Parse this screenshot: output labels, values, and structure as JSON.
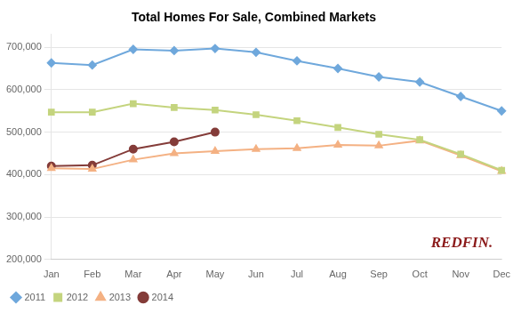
{
  "chart_data": {
    "type": "line",
    "title": "Total Homes For Sale, Combined Markets",
    "categories": [
      "Jan",
      "Feb",
      "Mar",
      "Apr",
      "May",
      "Jun",
      "Jul",
      "Aug",
      "Sep",
      "Oct",
      "Nov",
      "Dec"
    ],
    "series": [
      {
        "name": "2011",
        "color": "#6FA8DC",
        "marker": "diamond",
        "values": [
          663000,
          658000,
          695000,
          692000,
          697000,
          688000,
          668000,
          650000,
          630000,
          618000,
          584000,
          550000
        ]
      },
      {
        "name": "2012",
        "color": "#C4D47E",
        "marker": "square",
        "values": [
          547000,
          547000,
          567000,
          558000,
          552000,
          541000,
          527000,
          511000,
          495000,
          482000,
          448000,
          410000
        ]
      },
      {
        "name": "2013",
        "color": "#F4B183",
        "marker": "triangle",
        "values": [
          415000,
          413000,
          435000,
          450000,
          455000,
          460000,
          462000,
          470000,
          468000,
          480000,
          445000,
          408000
        ]
      },
      {
        "name": "2014",
        "color": "#843C39",
        "marker": "circle",
        "values": [
          420000,
          422000,
          460000,
          477000,
          500000,
          null,
          null,
          null,
          null,
          null,
          null,
          null
        ]
      }
    ],
    "ylim": [
      200000,
      730000
    ],
    "yticks": [
      {
        "value": 200000,
        "label": "200,000"
      },
      {
        "value": 300000,
        "label": "300,000"
      },
      {
        "value": 400000,
        "label": "400,000"
      },
      {
        "value": 500000,
        "label": "500,000"
      },
      {
        "value": 600000,
        "label": "600,000"
      },
      {
        "value": 700000,
        "label": "700,000"
      }
    ],
    "grid": true,
    "legend": "lower left",
    "annotations": [
      {
        "text": "REDFIN.",
        "color": "#8B1A1A"
      }
    ]
  }
}
